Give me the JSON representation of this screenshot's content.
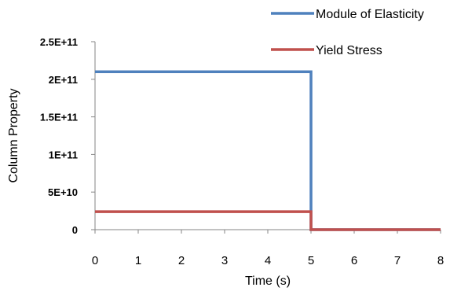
{
  "chart_data": {
    "type": "line",
    "title": "",
    "xlabel": "Time (s)",
    "ylabel": "Column Property",
    "xlim": [
      0,
      8
    ],
    "ylim": [
      0,
      250000000000
    ],
    "x_ticks": [
      0,
      1,
      2,
      3,
      4,
      5,
      6,
      7,
      8
    ],
    "x_tick_labels": [
      "0",
      "1",
      "2",
      "3",
      "4",
      "5",
      "6",
      "7",
      "8"
    ],
    "y_ticks": [
      0,
      50000000000,
      100000000000,
      150000000000,
      200000000000,
      250000000000
    ],
    "y_tick_labels": [
      "0",
      "5E+10",
      "1E+11",
      "1.5E+11",
      "2E+11",
      "2.5E+11"
    ],
    "grid": false,
    "legend_position": "top-right",
    "series": [
      {
        "name": "Module of Elasticity",
        "color": "#4F81BD",
        "points": [
          [
            0,
            210000000000
          ],
          [
            5,
            210000000000
          ],
          [
            5,
            0
          ],
          [
            8,
            0
          ]
        ]
      },
      {
        "name": "Yield Stress",
        "color": "#C0504D",
        "points": [
          [
            0,
            24000000000
          ],
          [
            5,
            24000000000
          ],
          [
            5,
            0
          ],
          [
            8,
            0
          ]
        ]
      }
    ]
  }
}
